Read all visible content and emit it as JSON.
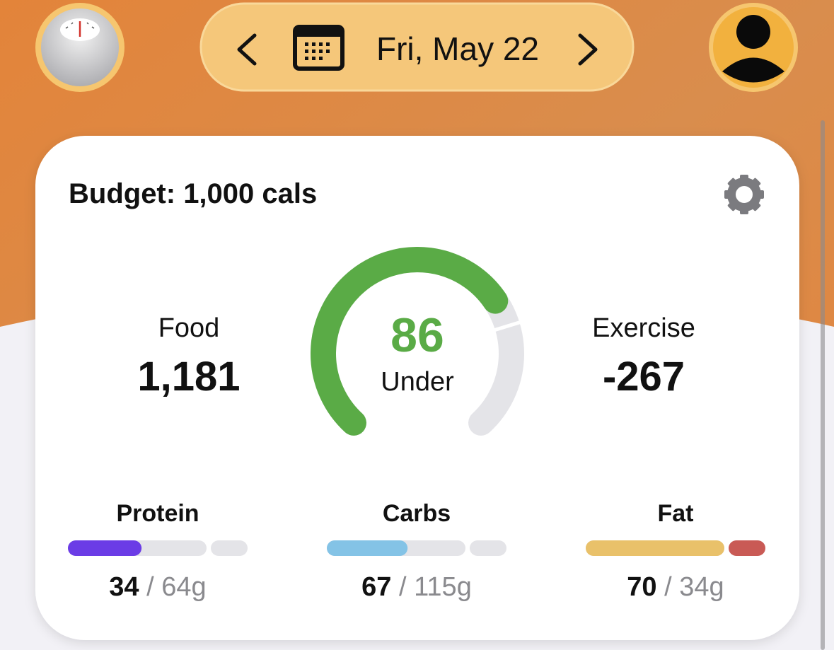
{
  "header": {
    "date": "Fri, May 22"
  },
  "card": {
    "budget": "Budget: 1,000 cals",
    "food": {
      "label": "Food",
      "value": "1,181"
    },
    "gauge": {
      "value": "86",
      "label": "Under"
    },
    "exercise": {
      "label": "Exercise",
      "value": "-267"
    },
    "macros": [
      {
        "name": "Protein",
        "eaten": 34,
        "separator": "/",
        "goal": 64,
        "unit": "g",
        "color": "#6b3ce6"
      },
      {
        "name": "Carbs",
        "eaten": 67,
        "separator": "/",
        "goal": 115,
        "unit": "g",
        "color": "#84c3e6"
      },
      {
        "name": "Fat",
        "eaten": 70,
        "separator": "/",
        "goal": 34,
        "unit": "g",
        "color": "#e9c16a",
        "over_color": "#c95a55"
      }
    ]
  }
}
